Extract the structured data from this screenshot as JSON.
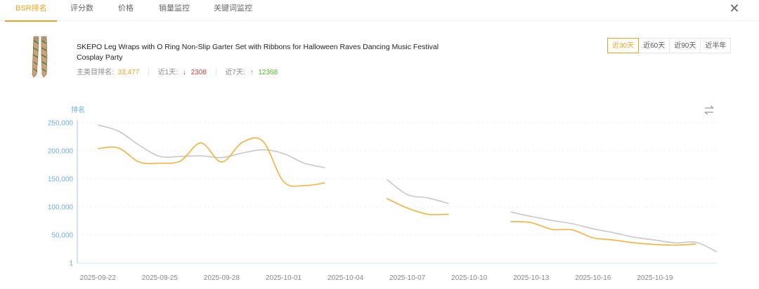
{
  "tabs": [
    {
      "label": "BSR排名",
      "active": true
    },
    {
      "label": "评分数",
      "active": false
    },
    {
      "label": "价格",
      "active": false
    },
    {
      "label": "销量监控",
      "active": false
    },
    {
      "label": "关键词监控",
      "active": false
    }
  ],
  "product": {
    "title": "SKEPO Leg Wraps with O Ring Non-Slip Garter Set with Ribbons for Halloween Raves Dancing Music Festival Cosplay Party",
    "main_rank_label": "主类目排名:",
    "main_rank_value": "33,477",
    "day1_label": "近1天:",
    "day1_value": "2308",
    "day7_label": "近7天:",
    "day7_value": "12368"
  },
  "ranges": [
    {
      "label": "近30天",
      "active": true
    },
    {
      "label": "近60天",
      "active": false
    },
    {
      "label": "近90天",
      "active": false
    },
    {
      "label": "近半年",
      "active": false
    }
  ],
  "colors": {
    "accent": "#f0a21e",
    "series_main": "#f5b13c",
    "series_sub": "#c8c8c8",
    "axis": "#6aaee0",
    "down": "#e03b2e",
    "up": "#52b82a"
  },
  "chart_data": {
    "type": "line",
    "ylabel": "排名",
    "y_ticks": [
      "250,000",
      "200,000",
      "150,000",
      "100,000",
      "50,000",
      "1"
    ],
    "ylim": [
      0,
      250000
    ],
    "x_ticks": [
      "2025-09-22",
      "2025-09-25",
      "2025-09-28",
      "2025-10-01",
      "2025-10-04",
      "2025-10-07",
      "2025-10-10",
      "2025-10-13",
      "2025-10-16",
      "2025-10-19"
    ],
    "xlim": [
      "2025-09-21",
      "2025-10-22"
    ],
    "grid": true,
    "series": [
      {
        "color": "#f5b13c",
        "segments": [
          [
            [
              "2025-09-22",
              204000
            ],
            [
              "2025-09-23",
              205000
            ],
            [
              "2025-09-24",
              180000
            ],
            [
              "2025-09-25",
              178000
            ],
            [
              "2025-09-26",
              182000
            ],
            [
              "2025-09-27",
              214000
            ],
            [
              "2025-09-28",
              180000
            ],
            [
              "2025-09-29",
              215000
            ],
            [
              "2025-09-30",
              217000
            ],
            [
              "2025-10-01",
              145000
            ],
            [
              "2025-10-02",
              138000
            ],
            [
              "2025-10-03",
              143000
            ]
          ],
          [
            [
              "2025-10-06",
              115000
            ],
            [
              "2025-10-07",
              98000
            ],
            [
              "2025-10-08",
              87000
            ],
            [
              "2025-10-09",
              87000
            ]
          ],
          [
            [
              "2025-10-12",
              74000
            ],
            [
              "2025-10-13",
              72000
            ],
            [
              "2025-10-14",
              60000
            ],
            [
              "2025-10-15",
              59000
            ],
            [
              "2025-10-16",
              45000
            ],
            [
              "2025-10-17",
              41000
            ],
            [
              "2025-10-18",
              36000
            ],
            [
              "2025-10-19",
              33000
            ],
            [
              "2025-10-20",
              32000
            ],
            [
              "2025-10-21",
              34000
            ]
          ]
        ]
      },
      {
        "color": "#c8c8c8",
        "segments": [
          [
            [
              "2025-09-22",
              246000
            ],
            [
              "2025-09-23",
              235000
            ],
            [
              "2025-09-24",
              210000
            ],
            [
              "2025-09-25",
              190000
            ],
            [
              "2025-09-26",
              190000
            ],
            [
              "2025-09-27",
              191000
            ],
            [
              "2025-09-28",
              188000
            ],
            [
              "2025-09-29",
              196000
            ],
            [
              "2025-09-30",
              202000
            ],
            [
              "2025-10-01",
              195000
            ],
            [
              "2025-10-02",
              178000
            ],
            [
              "2025-10-03",
              170000
            ]
          ],
          [
            [
              "2025-10-06",
              149000
            ],
            [
              "2025-10-07",
              122000
            ],
            [
              "2025-10-08",
              116000
            ],
            [
              "2025-10-09",
              106000
            ]
          ],
          [
            [
              "2025-10-12",
              91000
            ],
            [
              "2025-10-13",
              83000
            ],
            [
              "2025-10-14",
              76000
            ],
            [
              "2025-10-15",
              70000
            ],
            [
              "2025-10-16",
              61000
            ],
            [
              "2025-10-17",
              54000
            ],
            [
              "2025-10-18",
              46000
            ],
            [
              "2025-10-19",
              41000
            ],
            [
              "2025-10-20",
              36000
            ],
            [
              "2025-10-21",
              37000
            ],
            [
              "2025-10-22",
              20000
            ]
          ]
        ]
      }
    ]
  }
}
